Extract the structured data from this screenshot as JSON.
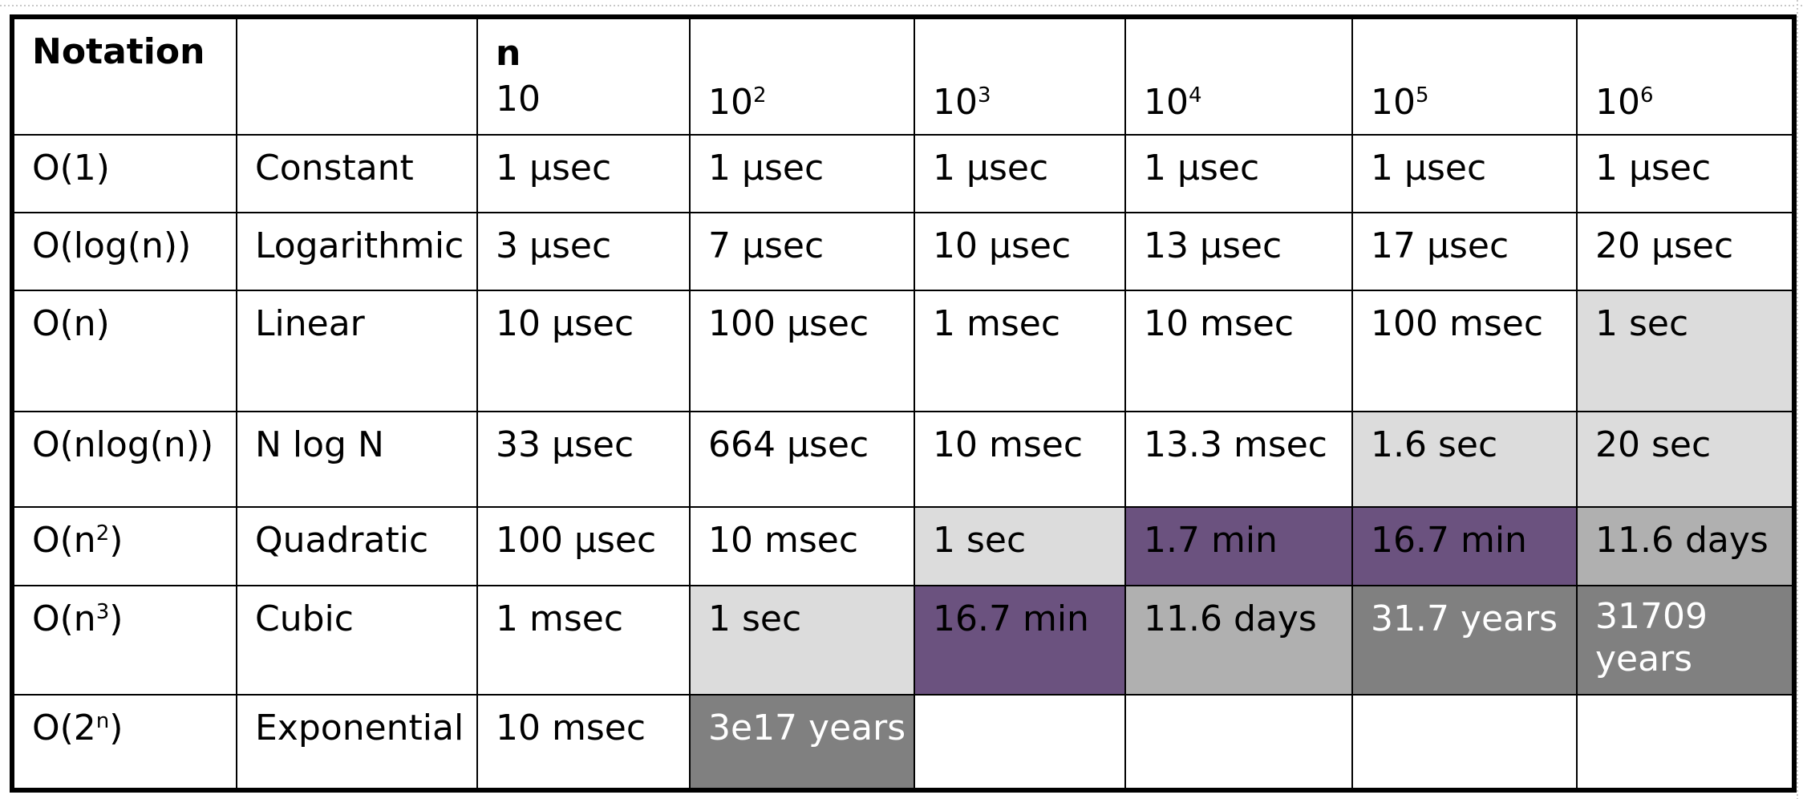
{
  "header": {
    "notation": "Notation",
    "n": "n",
    "sizes": [
      {
        "base": "10",
        "exp": ""
      },
      {
        "base": "10",
        "exp": "2"
      },
      {
        "base": "10",
        "exp": "3"
      },
      {
        "base": "10",
        "exp": "4"
      },
      {
        "base": "10",
        "exp": "5"
      },
      {
        "base": "10",
        "exp": "6"
      }
    ]
  },
  "rows": [
    {
      "nota": "O(1)",
      "name": "Constant",
      "cells": [
        "1 µsec",
        "1  µsec",
        "1  µsec",
        "1 µsec",
        "1 µsec",
        "1 µsec"
      ]
    },
    {
      "nota": "O(log(n))",
      "name": "Logarithmic",
      "cells": [
        "3 µsec",
        "7  µsec",
        "10 µsec",
        "13  µsec",
        "17 µsec",
        "20 µsec"
      ]
    },
    {
      "nota": "O(n)",
      "name": "Linear",
      "cells": [
        "10 µsec",
        "100 µsec",
        "1 msec",
        "10 msec",
        "100 msec",
        "1 sec"
      ]
    },
    {
      "nota": "O(nlog(n))",
      "name": "N log N",
      "cells": [
        "33 µsec",
        "664 µsec",
        "10 msec",
        "13.3 msec",
        "1.6 sec",
        "20 sec"
      ]
    },
    {
      "nota_base": "O(n",
      "nota_exp": "2",
      "nota_end": ")",
      "name": "Quadratic",
      "cells": [
        "100 µsec",
        "10  msec",
        "1 sec",
        "1.7 min",
        "16.7 min",
        "11.6 days"
      ]
    },
    {
      "nota_base": "O(n",
      "nota_exp": "3",
      "nota_end": ")",
      "name": "Cubic",
      "cells": [
        "1 msec",
        "1 sec",
        "16.7 min",
        "11.6 days",
        "31.7 years",
        "31709 years"
      ]
    },
    {
      "nota_base": "O(2",
      "nota_exp": "n",
      "nota_end": ")",
      "name": "Exponential",
      "cells": [
        "10 msec",
        "3e17 years",
        "",
        "",
        "",
        ""
      ]
    }
  ],
  "colors": {
    "light_gray": "#dcdcdc",
    "purple": "#6b527f",
    "mid_gray": "#b0b0b0",
    "dark_gray": "#808080"
  }
}
